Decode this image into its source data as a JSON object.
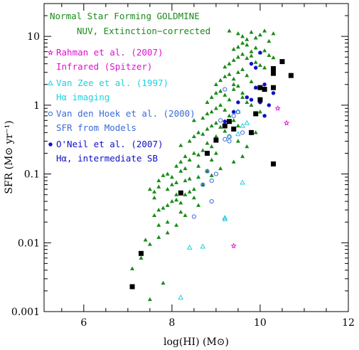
{
  "chart_data": {
    "type": "scatter",
    "xlabel": "log(HI) (M⊙)",
    "ylabel": "SFR (M⊙ yr⁻¹)",
    "xlim": [
      5.1,
      12
    ],
    "ylim": [
      0.001,
      30
    ],
    "yscale": "log",
    "x_ticks": [
      6,
      8,
      10,
      12
    ],
    "y_ticks": [
      0.001,
      0.01,
      0.1,
      1,
      10
    ],
    "y_tick_labels": [
      "0.001",
      "0.01",
      "0.1",
      "1",
      "10"
    ],
    "legend_placement": "top-left",
    "legend_header": [
      "Normal Star Forming GOLDMINE",
      "NUV, Extinction−corrected"
    ],
    "series": [
      {
        "name": "Normal Star Forming GOLDMINE",
        "color": "#1a8a1a",
        "marker": "filled-triangle",
        "points": [
          [
            7.5,
            0.0015
          ],
          [
            7.8,
            0.0026
          ],
          [
            7.1,
            0.0042
          ],
          [
            7.3,
            0.006
          ],
          [
            7.4,
            0.011
          ],
          [
            7.5,
            0.0095
          ],
          [
            7.7,
            0.012
          ],
          [
            7.9,
            0.014
          ],
          [
            7.7,
            0.018
          ],
          [
            7.9,
            0.02
          ],
          [
            8.1,
            0.018
          ],
          [
            8.2,
            0.028
          ],
          [
            8.3,
            0.025
          ],
          [
            7.6,
            0.025
          ],
          [
            7.7,
            0.03
          ],
          [
            7.6,
            0.045
          ],
          [
            7.8,
            0.032
          ],
          [
            8.0,
            0.04
          ],
          [
            8.1,
            0.042
          ],
          [
            8.2,
            0.038
          ],
          [
            7.5,
            0.06
          ],
          [
            7.6,
            0.055
          ],
          [
            7.7,
            0.065
          ],
          [
            7.9,
            0.06
          ],
          [
            8.0,
            0.07
          ],
          [
            8.1,
            0.075
          ],
          [
            8.3,
            0.05
          ],
          [
            8.4,
            0.055
          ],
          [
            8.5,
            0.045
          ],
          [
            8.6,
            0.035
          ],
          [
            7.7,
            0.08
          ],
          [
            7.8,
            0.095
          ],
          [
            7.9,
            0.1
          ],
          [
            8.0,
            0.09
          ],
          [
            8.2,
            0.11
          ],
          [
            8.3,
            0.12
          ],
          [
            8.4,
            0.085
          ],
          [
            8.5,
            0.06
          ],
          [
            8.6,
            0.09
          ],
          [
            8.7,
            0.07
          ],
          [
            8.1,
            0.13
          ],
          [
            8.2,
            0.15
          ],
          [
            8.3,
            0.18
          ],
          [
            8.4,
            0.16
          ],
          [
            8.5,
            0.2
          ],
          [
            8.6,
            0.19
          ],
          [
            8.7,
            0.22
          ],
          [
            8.8,
            0.28
          ],
          [
            8.9,
            0.25
          ],
          [
            9.0,
            0.2
          ],
          [
            8.2,
            0.26
          ],
          [
            8.4,
            0.3
          ],
          [
            8.5,
            0.35
          ],
          [
            8.6,
            0.4
          ],
          [
            8.7,
            0.38
          ],
          [
            8.8,
            0.45
          ],
          [
            8.9,
            0.5
          ],
          [
            9.0,
            0.55
          ],
          [
            9.1,
            0.48
          ],
          [
            9.2,
            0.42
          ],
          [
            8.5,
            0.6
          ],
          [
            8.7,
            0.65
          ],
          [
            8.8,
            0.75
          ],
          [
            8.9,
            0.8
          ],
          [
            9.0,
            0.9
          ],
          [
            9.1,
            1.0
          ],
          [
            9.2,
            0.85
          ],
          [
            9.3,
            0.7
          ],
          [
            9.4,
            0.6
          ],
          [
            9.5,
            0.5
          ],
          [
            8.8,
            1.1
          ],
          [
            8.9,
            1.3
          ],
          [
            9.0,
            1.5
          ],
          [
            9.1,
            1.6
          ],
          [
            9.2,
            1.4
          ],
          [
            9.3,
            1.2
          ],
          [
            9.4,
            1.7
          ],
          [
            9.5,
            1.9
          ],
          [
            9.6,
            1.3
          ],
          [
            9.7,
            1.1
          ],
          [
            9.0,
            2.0
          ],
          [
            9.1,
            2.3
          ],
          [
            9.2,
            2.6
          ],
          [
            9.3,
            2.8
          ],
          [
            9.4,
            2.4
          ],
          [
            9.5,
            3.0
          ],
          [
            9.6,
            3.3
          ],
          [
            9.7,
            2.7
          ],
          [
            9.8,
            2.2
          ],
          [
            9.9,
            1.8
          ],
          [
            9.2,
            3.6
          ],
          [
            9.3,
            4.0
          ],
          [
            9.4,
            4.5
          ],
          [
            9.5,
            5.0
          ],
          [
            9.6,
            5.5
          ],
          [
            9.7,
            4.8
          ],
          [
            9.8,
            5.2
          ],
          [
            9.9,
            4.2
          ],
          [
            10.0,
            3.8
          ],
          [
            10.1,
            3.5
          ],
          [
            9.4,
            6.5
          ],
          [
            9.5,
            7.0
          ],
          [
            9.6,
            8.0
          ],
          [
            9.7,
            7.5
          ],
          [
            9.8,
            6.0
          ],
          [
            9.9,
            6.8
          ],
          [
            10.0,
            5.8
          ],
          [
            10.1,
            6.2
          ],
          [
            10.2,
            5.3
          ],
          [
            10.3,
            4.9
          ],
          [
            9.3,
            12.0
          ],
          [
            9.5,
            11.0
          ],
          [
            9.6,
            10.0
          ],
          [
            9.7,
            9.0
          ],
          [
            9.8,
            11.5
          ],
          [
            9.9,
            9.5
          ],
          [
            10.0,
            10.5
          ],
          [
            10.1,
            12.0
          ],
          [
            10.2,
            8.5
          ],
          [
            10.3,
            11.0
          ],
          [
            9.4,
            2.0
          ],
          [
            9.6,
            1.5
          ],
          [
            9.8,
            1.0
          ],
          [
            10.0,
            0.8
          ],
          [
            9.5,
            0.3
          ],
          [
            9.7,
            0.25
          ],
          [
            9.9,
            0.4
          ],
          [
            9.6,
            0.18
          ],
          [
            9.4,
            0.15
          ],
          [
            9.1,
            0.12
          ],
          [
            8.9,
            0.16
          ],
          [
            9.0,
            0.35
          ],
          [
            8.6,
            0.13
          ],
          [
            8.8,
            0.11
          ],
          [
            8.9,
            0.095
          ],
          [
            8.3,
            0.08
          ],
          [
            8.1,
            0.05
          ],
          [
            7.9,
            0.035
          ]
        ]
      },
      {
        "name": "Rahman et al. (2007)",
        "sublabel": "Infrared (Spitzer)",
        "color": "#e010d0",
        "marker": "star",
        "points": [
          [
            9.4,
            0.009
          ],
          [
            10.4,
            0.9
          ],
          [
            10.6,
            0.55
          ]
        ]
      },
      {
        "name": "Van Zee et al. (1997)",
        "sublabel": "Hα imaging",
        "color": "#20d0e0",
        "marker": "open-triangle",
        "points": [
          [
            8.2,
            0.0016
          ],
          [
            8.4,
            0.0085
          ],
          [
            8.7,
            0.0088
          ],
          [
            9.2,
            0.023
          ],
          [
            9.2,
            0.022
          ],
          [
            9.6,
            0.075
          ],
          [
            9.3,
            0.35
          ],
          [
            9.5,
            0.38
          ],
          [
            9.6,
            0.5
          ],
          [
            9.7,
            0.55
          ],
          [
            9.5,
            0.8
          ]
        ]
      },
      {
        "name": "Van den Hoek et al. (2000)",
        "sublabel": "SFR from Models",
        "color": "#3a6ad8",
        "marker": "open-circle",
        "points": [
          [
            8.5,
            0.024
          ],
          [
            8.9,
            0.04
          ],
          [
            8.9,
            0.08
          ],
          [
            8.7,
            0.07
          ],
          [
            8.8,
            0.11
          ],
          [
            9.0,
            0.1
          ],
          [
            9.2,
            0.32
          ],
          [
            9.3,
            0.3
          ],
          [
            9.1,
            0.6
          ],
          [
            9.4,
            0.7
          ],
          [
            9.2,
            1.7
          ],
          [
            9.5,
            0.8
          ],
          [
            9.3,
            0.35
          ],
          [
            9.6,
            0.4
          ]
        ]
      },
      {
        "name": "O'Neil et al. (2007)",
        "sublabel": "Hα, intermediate SB",
        "color": "#1010c8",
        "marker": "filled-circle",
        "points": [
          [
            9.2,
            0.58
          ],
          [
            9.4,
            0.8
          ],
          [
            9.5,
            1.1
          ],
          [
            9.7,
            1.3
          ],
          [
            9.8,
            1.2
          ],
          [
            9.9,
            1.8
          ],
          [
            10.0,
            1.1
          ],
          [
            10.1,
            0.7
          ],
          [
            9.8,
            4.0
          ],
          [
            9.9,
            3.5
          ],
          [
            10.0,
            5.8
          ],
          [
            10.1,
            2.0
          ],
          [
            10.2,
            1.0
          ],
          [
            10.3,
            1.5
          ]
        ]
      },
      {
        "name": "",
        "color": "#000000",
        "marker": "filled-square",
        "points": [
          [
            7.1,
            0.0023
          ],
          [
            7.3,
            0.007
          ],
          [
            8.2,
            0.053
          ],
          [
            8.8,
            0.2
          ],
          [
            9.0,
            0.31
          ],
          [
            9.2,
            0.5
          ],
          [
            9.3,
            0.58
          ],
          [
            9.4,
            0.45
          ],
          [
            9.8,
            0.4
          ],
          [
            9.9,
            0.75
          ],
          [
            10.0,
            1.2
          ],
          [
            10.0,
            1.8
          ],
          [
            10.1,
            1.7
          ],
          [
            10.3,
            1.8
          ],
          [
            10.3,
            2.9
          ],
          [
            10.3,
            3.4
          ],
          [
            10.5,
            4.3
          ],
          [
            10.7,
            2.7
          ],
          [
            10.3,
            0.14
          ]
        ]
      }
    ]
  }
}
